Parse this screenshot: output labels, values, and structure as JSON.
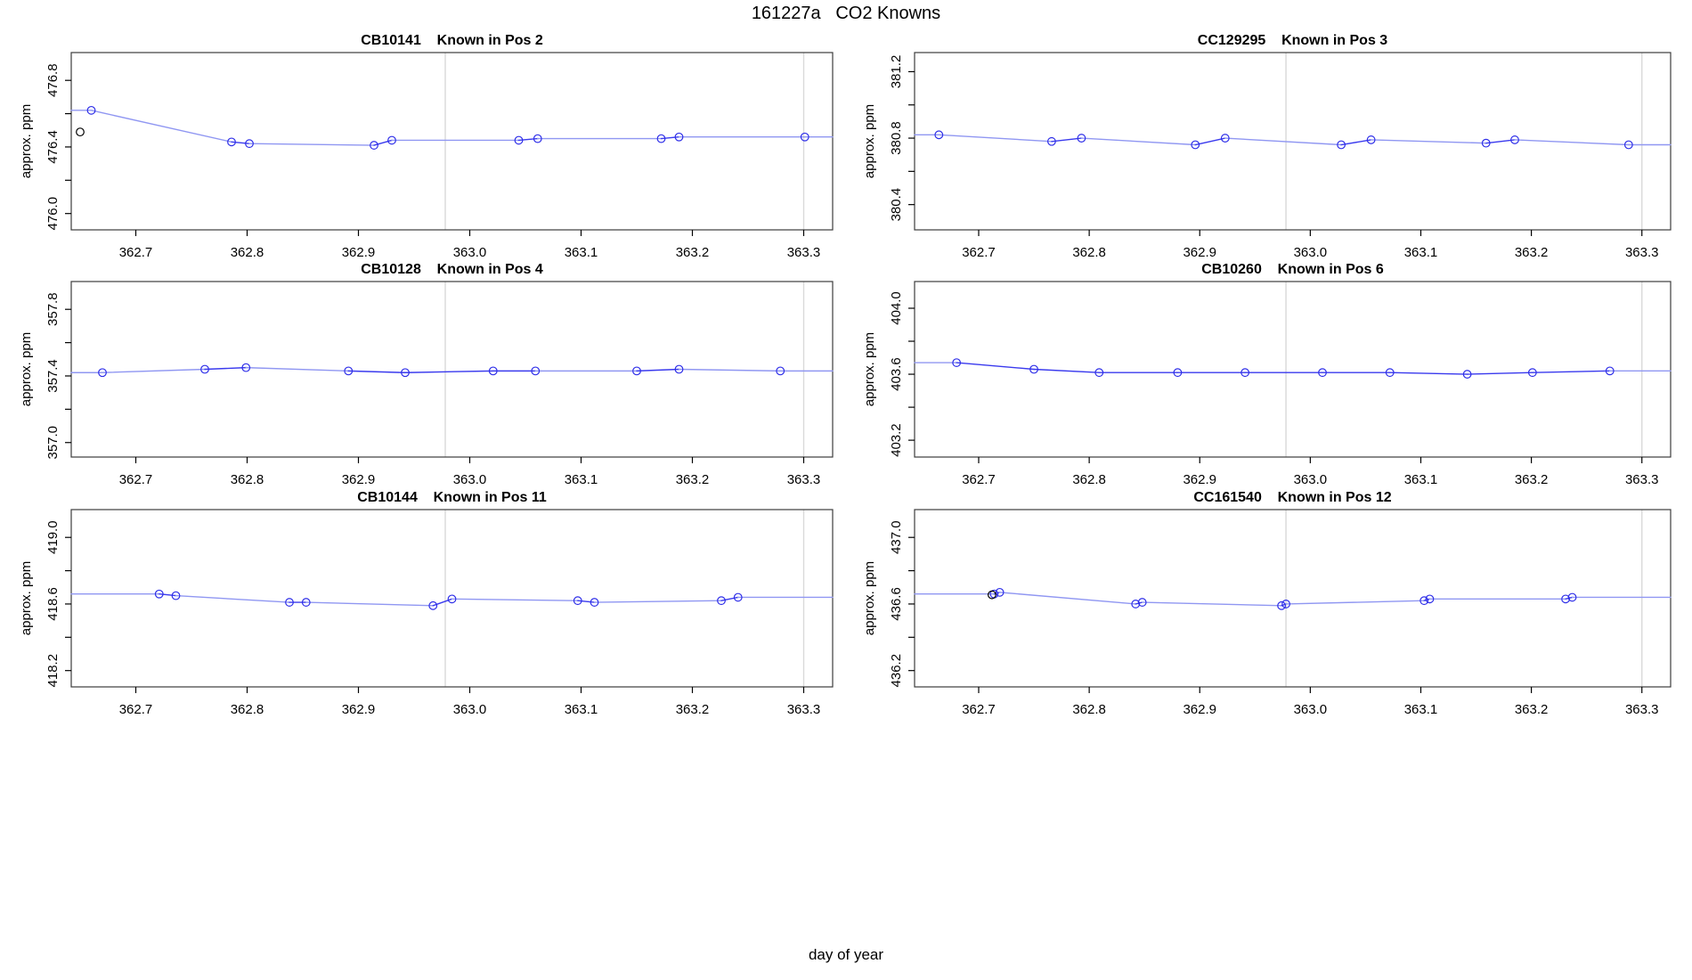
{
  "page_title": "161227a   CO2 Knowns",
  "xlabel": "day of year",
  "ylabel": "approx. ppm",
  "colors": {
    "line_dark": "#3a3aee",
    "line_light": "#9097f2",
    "point": "#2d2de8",
    "black_point": "#000000",
    "gridline": "#d9d9d9",
    "box": "#3c3c3c",
    "tick": "#000000",
    "text": "#000000",
    "background": "#ffffff"
  },
  "chart_data": [
    {
      "type": "line",
      "id": "CB10141",
      "position_label": "Known in Pos 2",
      "title": "CB10141    Known in Pos 2",
      "ylabel": "approx. ppm",
      "xlim": [
        362.642,
        363.326
      ],
      "ylim": [
        475.902,
        476.967
      ],
      "xticks": [
        362.7,
        362.8,
        362.9,
        363.0,
        363.1,
        363.2,
        363.3
      ],
      "xtick_labels": [
        "362.7",
        "362.8",
        "362.9",
        "363.0",
        "363.1",
        "363.2",
        "363.3"
      ],
      "yticks": [
        476.0,
        476.2,
        476.4,
        476.6,
        476.8
      ],
      "ytick_labels": [
        "476.0",
        "",
        "476.4",
        "",
        "476.8"
      ],
      "vlines": [
        362.978,
        363.3
      ],
      "x": [
        362.66,
        362.786,
        362.802,
        362.914,
        362.93,
        363.044,
        363.061,
        363.172,
        363.188,
        363.301
      ],
      "y": [
        476.62,
        476.43,
        476.42,
        476.41,
        476.44,
        476.44,
        476.45,
        476.45,
        476.46,
        476.46
      ],
      "black_points": [
        [
          362.65,
          476.49
        ]
      ]
    },
    {
      "type": "line",
      "id": "CC129295",
      "position_label": "Known in Pos 3",
      "title": "CC129295    Known in Pos 3",
      "ylabel": "approx. ppm",
      "xlim": [
        362.642,
        363.326
      ],
      "ylim": [
        380.248,
        381.315
      ],
      "xticks": [
        362.7,
        362.8,
        362.9,
        363.0,
        363.1,
        363.2,
        363.3
      ],
      "xtick_labels": [
        "362.7",
        "362.8",
        "362.9",
        "363.0",
        "363.1",
        "363.2",
        "363.3"
      ],
      "yticks": [
        380.4,
        380.6,
        380.8,
        381.0,
        381.2
      ],
      "ytick_labels": [
        "380.4",
        "",
        "380.8",
        "",
        "381.2"
      ],
      "vlines": [
        362.978,
        363.3
      ],
      "x": [
        362.664,
        362.766,
        362.793,
        362.896,
        362.923,
        363.028,
        363.055,
        363.159,
        363.185,
        363.288
      ],
      "y": [
        380.82,
        380.78,
        380.8,
        380.76,
        380.8,
        380.76,
        380.79,
        380.77,
        380.79,
        380.76
      ],
      "black_points": []
    },
    {
      "type": "line",
      "id": "CB10128",
      "position_label": "Known in Pos 4",
      "title": "CB10128    Known in Pos 4",
      "ylabel": "approx. ppm",
      "xlim": [
        362.642,
        363.326
      ],
      "ylim": [
        356.913,
        357.967
      ],
      "xticks": [
        362.7,
        362.8,
        362.9,
        363.0,
        363.1,
        363.2,
        363.3
      ],
      "xtick_labels": [
        "362.7",
        "362.8",
        "362.9",
        "363.0",
        "363.1",
        "363.2",
        "363.3"
      ],
      "yticks": [
        357.0,
        357.2,
        357.4,
        357.6,
        357.8
      ],
      "ytick_labels": [
        "357.0",
        "",
        "357.4",
        "",
        "357.8"
      ],
      "vlines": [
        362.978,
        363.3
      ],
      "x": [
        362.67,
        362.762,
        362.799,
        362.891,
        362.942,
        363.021,
        363.059,
        363.15,
        363.188,
        363.279
      ],
      "y": [
        357.42,
        357.44,
        357.45,
        357.43,
        357.42,
        357.43,
        357.43,
        357.43,
        357.44,
        357.43
      ],
      "black_points": []
    },
    {
      "type": "line",
      "id": "CB10260",
      "position_label": "Known in Pos 6",
      "title": "CB10260    Known in Pos 6",
      "ylabel": "approx. ppm",
      "xlim": [
        362.642,
        363.326
      ],
      "ylim": [
        403.098,
        404.162
      ],
      "xticks": [
        362.7,
        362.8,
        362.9,
        363.0,
        363.1,
        363.2,
        363.3
      ],
      "xtick_labels": [
        "362.7",
        "362.8",
        "362.9",
        "363.0",
        "363.1",
        "363.2",
        "363.3"
      ],
      "yticks": [
        403.2,
        403.4,
        403.6,
        403.8,
        404.0
      ],
      "ytick_labels": [
        "403.2",
        "",
        "403.6",
        "",
        "404.0"
      ],
      "vlines": [
        362.978,
        363.3
      ],
      "x": [
        362.68,
        362.75,
        362.809,
        362.88,
        362.941,
        363.011,
        363.072,
        363.142,
        363.201,
        363.271
      ],
      "y": [
        403.67,
        403.63,
        403.61,
        403.61,
        403.61,
        403.61,
        403.61,
        403.6,
        403.61,
        403.62
      ],
      "black_points": []
    },
    {
      "type": "line",
      "id": "CB10144",
      "position_label": "Known in Pos 11",
      "title": "CB10144    Known in Pos 11",
      "ylabel": "approx. ppm",
      "xlim": [
        362.642,
        363.326
      ],
      "ylim": [
        418.102,
        419.167
      ],
      "xticks": [
        362.7,
        362.8,
        362.9,
        363.0,
        363.1,
        363.2,
        363.3
      ],
      "xtick_labels": [
        "362.7",
        "362.8",
        "362.9",
        "363.0",
        "363.1",
        "363.2",
        "363.3"
      ],
      "yticks": [
        418.2,
        418.4,
        418.6,
        418.8,
        419.0
      ],
      "ytick_labels": [
        "418.2",
        "",
        "418.6",
        "",
        "419.0"
      ],
      "vlines": [
        362.978,
        363.3
      ],
      "x": [
        362.721,
        362.736,
        362.838,
        362.853,
        362.967,
        362.984,
        363.097,
        363.112,
        363.226,
        363.241
      ],
      "y": [
        418.66,
        418.65,
        418.61,
        418.61,
        418.59,
        418.63,
        418.62,
        418.61,
        418.62,
        418.64
      ],
      "black_points": []
    },
    {
      "type": "line",
      "id": "CC161540",
      "position_label": "Known in Pos 12",
      "title": "CC161540    Known in Pos 12",
      "ylabel": "approx. ppm",
      "xlim": [
        362.642,
        363.326
      ],
      "ylim": [
        436.102,
        437.167
      ],
      "xticks": [
        362.7,
        362.8,
        362.9,
        363.0,
        363.1,
        363.2,
        363.3
      ],
      "xtick_labels": [
        "362.7",
        "362.8",
        "362.9",
        "363.0",
        "363.1",
        "363.2",
        "363.3"
      ],
      "yticks": [
        436.2,
        436.4,
        436.6,
        436.8,
        437.0
      ],
      "ytick_labels": [
        "436.2",
        "",
        "436.6",
        "",
        "437.0"
      ],
      "vlines": [
        362.978,
        363.3
      ],
      "x": [
        362.714,
        362.719,
        362.842,
        362.848,
        362.974,
        362.978,
        363.103,
        363.108,
        363.231,
        363.237
      ],
      "y": [
        436.66,
        436.67,
        436.6,
        436.61,
        436.59,
        436.6,
        436.62,
        436.63,
        436.63,
        436.64
      ],
      "black_points": [
        [
          362.712,
          436.655
        ]
      ]
    }
  ]
}
